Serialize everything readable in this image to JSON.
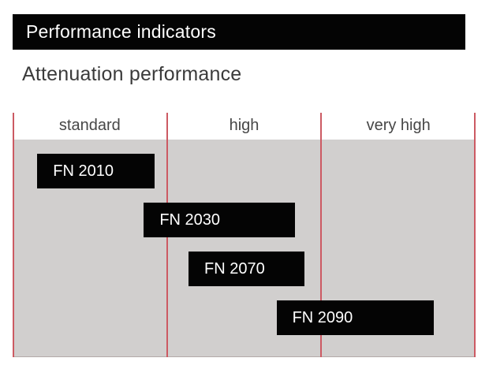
{
  "header": {
    "title": "Performance indicators",
    "subtitle": "Attenuation performance"
  },
  "chart_data": {
    "type": "range_bar",
    "title": "Attenuation performance",
    "bands": [
      "standard",
      "high",
      "very high"
    ],
    "axis": {
      "min": 0,
      "max": 3
    },
    "items": [
      {
        "label": "FN 2010",
        "span": [
          0.16,
          0.92
        ]
      },
      {
        "label": "FN 2030",
        "span": [
          0.85,
          1.83
        ]
      },
      {
        "label": "FN 2070",
        "span": [
          1.14,
          1.89
        ]
      },
      {
        "label": "FN 2090",
        "span": [
          1.71,
          2.73
        ]
      }
    ],
    "legend": "none",
    "grid": "vertical band separators",
    "colors": {
      "bar": "#040404",
      "bar_text": "#ffffff",
      "band_line": "#cc5a63",
      "plot_background": "#d1cfce",
      "header_text": "#474747"
    }
  }
}
